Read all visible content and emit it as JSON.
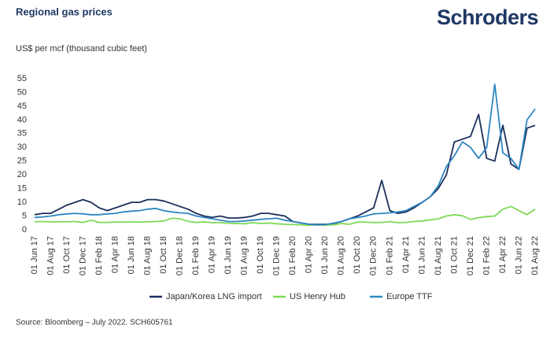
{
  "chart_data": {
    "type": "line",
    "title": "Regional gas prices",
    "logo": "Schroders",
    "y_label": "US$ per mcf (thousand cubic feet)",
    "source": "Source: Bloomberg – July 2022. SCH605761",
    "categories": [
      "01 Jun 17",
      null,
      "01 Aug 17",
      null,
      "01 Oct 17",
      null,
      "01 Dec 17",
      null,
      "01 Feb 18",
      null,
      "01 Apr 18",
      null,
      "01 Jun 18",
      null,
      "01 Aug 18",
      null,
      "01 Oct 18",
      null,
      "01 Dec 18",
      null,
      "01 Feb 19",
      null,
      "01 Apr 19",
      null,
      "01 Jun 19",
      null,
      "01 Aug 19",
      null,
      "01 Oct 19",
      null,
      "01 Dec 19",
      null,
      "01 Feb 20",
      null,
      "01 Apr 20",
      null,
      "01 Jun 20",
      null,
      "01 Aug 20",
      null,
      "01 Oct 20",
      null,
      "01 Dec 20",
      null,
      "01 Feb 21",
      null,
      "01 Apr 21",
      null,
      "01 Jun 21",
      null,
      "01 Aug 21",
      null,
      "01 Oct 21",
      null,
      "01 Dec 21",
      null,
      "01 Feb 22",
      null,
      "01 Apr 22",
      null,
      "01 Jun 22",
      null,
      "01 Aug 22"
    ],
    "series": [
      {
        "name": "Japan/Korea LNG import",
        "color": "#1b2f5b",
        "values": [
          5.5,
          6,
          6,
          7.5,
          9,
          10,
          11,
          10,
          8,
          7,
          8,
          9,
          10,
          10,
          11,
          11,
          10.5,
          9.5,
          8.5,
          7.5,
          6,
          5,
          4.5,
          5,
          4.3,
          4.3,
          4.5,
          5,
          6,
          6,
          5.5,
          5,
          3,
          2.5,
          2,
          2,
          2,
          2.2,
          3,
          4,
          5,
          6.5,
          8,
          18,
          7,
          6,
          6.5,
          8,
          10,
          12,
          15,
          20,
          32,
          33,
          34,
          42,
          26,
          25,
          38,
          24,
          22,
          37,
          38
        ]
      },
      {
        "name": "US Henry Hub",
        "color": "#7ed957",
        "values": [
          2.9,
          3,
          2.9,
          2.9,
          2.9,
          3,
          2.7,
          3.5,
          2.7,
          2.7,
          2.8,
          2.8,
          2.9,
          2.8,
          2.9,
          3,
          3.2,
          4.2,
          4,
          3.1,
          2.7,
          2.9,
          2.6,
          2.6,
          2.4,
          2.3,
          2.2,
          2.6,
          2.3,
          2.5,
          2.2,
          2,
          1.9,
          1.8,
          1.7,
          1.8,
          1.7,
          1.8,
          2.3,
          2,
          2.8,
          2.8,
          2.6,
          2.7,
          3,
          2.6,
          2.7,
          3,
          3.2,
          3.6,
          4,
          5,
          5.5,
          5.1,
          3.8,
          4.4,
          4.8,
          5,
          7.5,
          8.5,
          7,
          5.5,
          7.5
        ]
      },
      {
        "name": "Europe TTF",
        "color": "#2e86c1",
        "values": [
          4.5,
          4.7,
          5,
          5.5,
          5.8,
          6,
          5.8,
          5.5,
          5.5,
          5.8,
          6,
          6.5,
          6.8,
          7,
          7.5,
          7.8,
          7,
          6.5,
          6.2,
          6,
          5,
          4.5,
          4,
          3.5,
          3,
          3,
          3.2,
          3.5,
          3.8,
          4,
          4.2,
          3.5,
          3,
          2.5,
          2,
          1.8,
          1.9,
          2.4,
          3,
          4,
          4.5,
          5,
          5.8,
          6,
          6.2,
          6.5,
          7,
          8.5,
          10,
          12,
          16,
          23,
          27,
          32,
          30,
          26,
          30,
          53,
          28,
          26,
          22,
          40,
          44
        ]
      }
    ],
    "ylim": [
      0,
      55
    ],
    "yticks": [
      0,
      5,
      10,
      15,
      20,
      25,
      30,
      35,
      40,
      45,
      50,
      55
    ],
    "legend": "bottom"
  }
}
